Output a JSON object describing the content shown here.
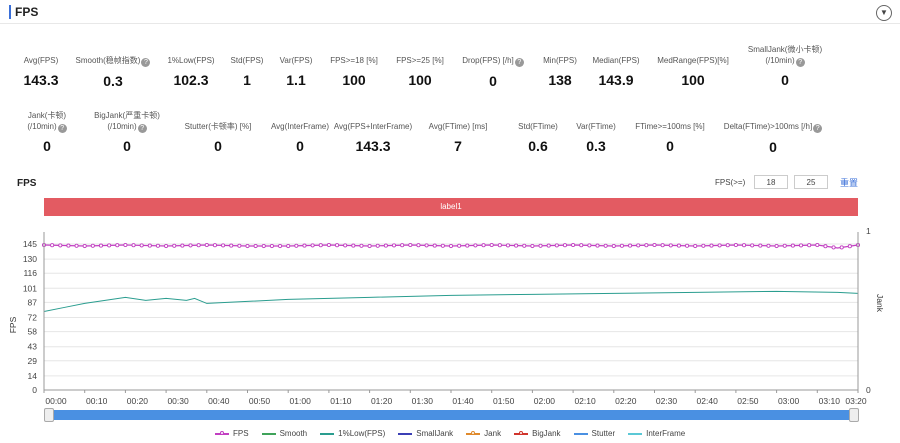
{
  "header": {
    "title": "FPS"
  },
  "metrics_row1": [
    {
      "label": "Avg(FPS)",
      "value": "143.3",
      "help": false
    },
    {
      "label": "Smooth(稳帧指数)",
      "value": "0.3",
      "help": true
    },
    {
      "label": "1%Low(FPS)",
      "value": "102.3",
      "help": false
    },
    {
      "label": "Std(FPS)",
      "value": "1",
      "help": false
    },
    {
      "label": "Var(FPS)",
      "value": "1.1",
      "help": false
    },
    {
      "label": "FPS>=18 [%]",
      "value": "100",
      "help": false
    },
    {
      "label": "FPS>=25 [%]",
      "value": "100",
      "help": false
    },
    {
      "label": "Drop(FPS) [/h]",
      "value": "0",
      "help": true
    },
    {
      "label": "Min(FPS)",
      "value": "138",
      "help": false
    },
    {
      "label": "Median(FPS)",
      "value": "143.9",
      "help": false
    },
    {
      "label": "MedRange(FPS)[%]",
      "value": "100",
      "help": false
    },
    {
      "label": "SmallJank(微小卡顿)",
      "label2": "(/10min)",
      "value": "0",
      "help": true
    }
  ],
  "metrics_row2": [
    {
      "label": "Jank(卡顿)",
      "label2": "(/10min)",
      "value": "0",
      "help": true
    },
    {
      "label": "BigJank(严重卡顿)",
      "label2": "(/10min)",
      "value": "0",
      "help": true
    },
    {
      "label": "Stutter(卡顿率) [%]",
      "value": "0",
      "help": false
    },
    {
      "label": "Avg(InterFrame)",
      "value": "0",
      "help": false
    },
    {
      "label": "Avg(FPS+InterFrame)",
      "value": "143.3",
      "help": false
    },
    {
      "label": "Avg(FTime) [ms]",
      "value": "7",
      "help": false
    },
    {
      "label": "Std(FTime)",
      "value": "0.6",
      "help": false
    },
    {
      "label": "Var(FTime)",
      "value": "0.3",
      "help": false
    },
    {
      "label": "FTime>=100ms [%]",
      "value": "0",
      "help": false
    },
    {
      "label": "Delta(FTime)>100ms [/h]",
      "value": "0",
      "help": true
    }
  ],
  "chart_section": {
    "title": "FPS",
    "threshold_label": "FPS(>=)",
    "threshold_1": "18",
    "threshold_2": "25",
    "reset_label": "重置",
    "label_bar": "label1"
  },
  "legend": [
    {
      "name": "FPS",
      "color": "#c23fc2",
      "marker": true
    },
    {
      "name": "Smooth",
      "color": "#3fa35a",
      "marker": false
    },
    {
      "name": "1%Low(FPS)",
      "color": "#2a9d8f",
      "marker": false
    },
    {
      "name": "SmallJank",
      "color": "#3b3fb5",
      "marker": false
    },
    {
      "name": "Jank",
      "color": "#e08a2c",
      "marker": true
    },
    {
      "name": "BigJank",
      "color": "#d0342c",
      "marker": true
    },
    {
      "name": "Stutter",
      "color": "#4a90e2",
      "marker": false
    },
    {
      "name": "InterFrame",
      "color": "#5bc8d6",
      "marker": false
    }
  ],
  "chart_data": {
    "type": "line",
    "ylabel": "FPS",
    "y2label": "Jank",
    "yticks": [
      0,
      14,
      29,
      43,
      58,
      72,
      87,
      101,
      116,
      130,
      145
    ],
    "y2ticks": [
      0,
      1
    ],
    "ylim": [
      0,
      145
    ],
    "xticks": [
      "00:00",
      "00:10",
      "00:20",
      "00:30",
      "00:40",
      "00:50",
      "01:00",
      "01:10",
      "01:20",
      "01:30",
      "01:40",
      "01:50",
      "02:00",
      "02:10",
      "02:20",
      "02:30",
      "02:40",
      "02:50",
      "03:00",
      "03:10",
      "03:20"
    ],
    "xlim_seconds": [
      0,
      200
    ],
    "series": [
      {
        "name": "FPS",
        "x": [
          0,
          10,
          20,
          30,
          40,
          50,
          60,
          70,
          80,
          90,
          100,
          110,
          120,
          130,
          140,
          150,
          160,
          170,
          180,
          190,
          195,
          200
        ],
        "values": [
          144,
          143,
          144,
          143,
          144,
          143,
          143,
          144,
          143,
          144,
          143,
          144,
          143,
          144,
          143,
          144,
          143,
          144,
          143,
          144,
          141,
          144
        ]
      },
      {
        "name": "1%Low(FPS)",
        "x": [
          0,
          5,
          10,
          15,
          20,
          25,
          30,
          35,
          37,
          40,
          50,
          60,
          80,
          100,
          120,
          140,
          160,
          180,
          195,
          200
        ],
        "values": [
          78,
          82,
          86,
          89,
          92,
          89,
          91,
          89,
          91,
          86,
          88,
          90,
          92,
          94,
          95,
          96,
          97,
          98,
          97,
          96
        ]
      },
      {
        "name": "Smooth",
        "x": [
          0,
          200
        ],
        "values": [
          0,
          0
        ]
      },
      {
        "name": "Jank",
        "x": [
          0,
          200
        ],
        "values": [
          0,
          0
        ]
      }
    ]
  }
}
